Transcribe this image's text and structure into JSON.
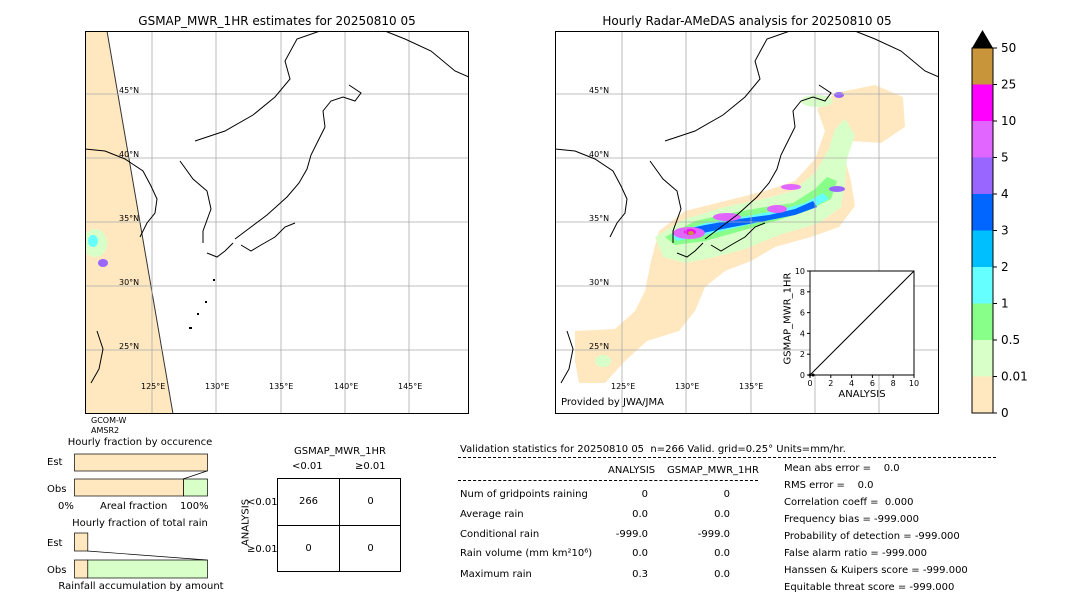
{
  "left_map": {
    "title": "GSMAP_MWR_1HR estimates for 20250810 05",
    "lat_labels": [
      "45°N",
      "40°N",
      "35°N",
      "30°N",
      "25°N"
    ],
    "lon_labels": [
      "125°E",
      "130°E",
      "135°E",
      "140°E",
      "145°E"
    ],
    "satellite_labels": [
      "GCOM-W",
      "AMSR2"
    ]
  },
  "right_map": {
    "title": "Hourly Radar-AMeDAS analysis for 20250810 05",
    "lat_labels": [
      "45°N",
      "40°N",
      "35°N",
      "30°N",
      "25°N"
    ],
    "lon_labels": [
      "125°E",
      "130°E",
      "135°E"
    ],
    "credit": "Provided by JWA/JMA"
  },
  "colorbar": {
    "labels": [
      "50",
      "25",
      "10",
      "5",
      "4",
      "3",
      "2",
      "1",
      "0.5",
      "0.01",
      "0"
    ],
    "colors": [
      "#c8953a",
      "#ff00ff",
      "#e066ff",
      "#9966ff",
      "#0066ff",
      "#00bfff",
      "#66ffff",
      "#88ff88",
      "#d9ffc8",
      "#ffe8c0"
    ],
    "extend_color": "#000000"
  },
  "chart_data": [
    {
      "type": "scatter",
      "title": "",
      "xlabel": "ANALYSIS",
      "ylabel": "GSMAP_MWR_1HR",
      "xlim": [
        0,
        10
      ],
      "ylim": [
        0,
        10
      ],
      "ticks": [
        "0",
        "2",
        "4",
        "6",
        "8",
        "10"
      ],
      "x": [
        0.0,
        0.3
      ],
      "y": [
        0.0,
        0.0
      ]
    },
    {
      "type": "bar",
      "title": "Hourly fraction by occurence",
      "categories": [
        "Est",
        "Obs"
      ],
      "values": [
        1.0,
        0.0
      ],
      "secondary_values": [
        0.0,
        0.18
      ],
      "xlabel": "Areal fraction",
      "tick_left": "0%",
      "tick_right": "100%"
    },
    {
      "type": "bar",
      "title": "Hourly fraction of total rain",
      "categories": [
        "Est",
        "Obs"
      ],
      "values": [
        0.1,
        0.1
      ],
      "xlabel": "Rainfall accumulation by amount"
    }
  ],
  "contingency": {
    "title": "GSMAP_MWR_1HR",
    "col_headers": [
      "<0.01",
      "≥0.01"
    ],
    "row_label": "ANALYSIS",
    "row_headers": [
      "<0.01",
      "≥0.01"
    ],
    "cells": [
      [
        "266",
        "0"
      ],
      [
        "0",
        "0"
      ]
    ]
  },
  "validation": {
    "header": "Validation statistics for 20250810 05  n=266 Valid. grid=0.25° Units=mm/hr.",
    "col_analysis": "ANALYSIS",
    "col_gsmap": "GSMAP_MWR_1HR",
    "rows": [
      {
        "label": "Num of gridpoints raining",
        "analysis": "0",
        "gsmap": "0"
      },
      {
        "label": "Average rain",
        "analysis": "0.0",
        "gsmap": "0.0"
      },
      {
        "label": "Conditional rain",
        "analysis": "-999.0",
        "gsmap": "-999.0"
      },
      {
        "label": "Rain volume (mm km²10⁶)",
        "analysis": "0.0",
        "gsmap": "0.0"
      },
      {
        "label": "Maximum rain",
        "analysis": "0.3",
        "gsmap": "0.0"
      }
    ],
    "scores": [
      "Mean abs error =    0.0",
      "RMS error =    0.0",
      "Correlation coeff =  0.000",
      "Frequency bias = -999.000",
      "Probability of detection = -999.000",
      "False alarm ratio = -999.000",
      "Hanssen & Kuipers score = -999.000",
      "Equitable threat score = -999.000"
    ]
  }
}
